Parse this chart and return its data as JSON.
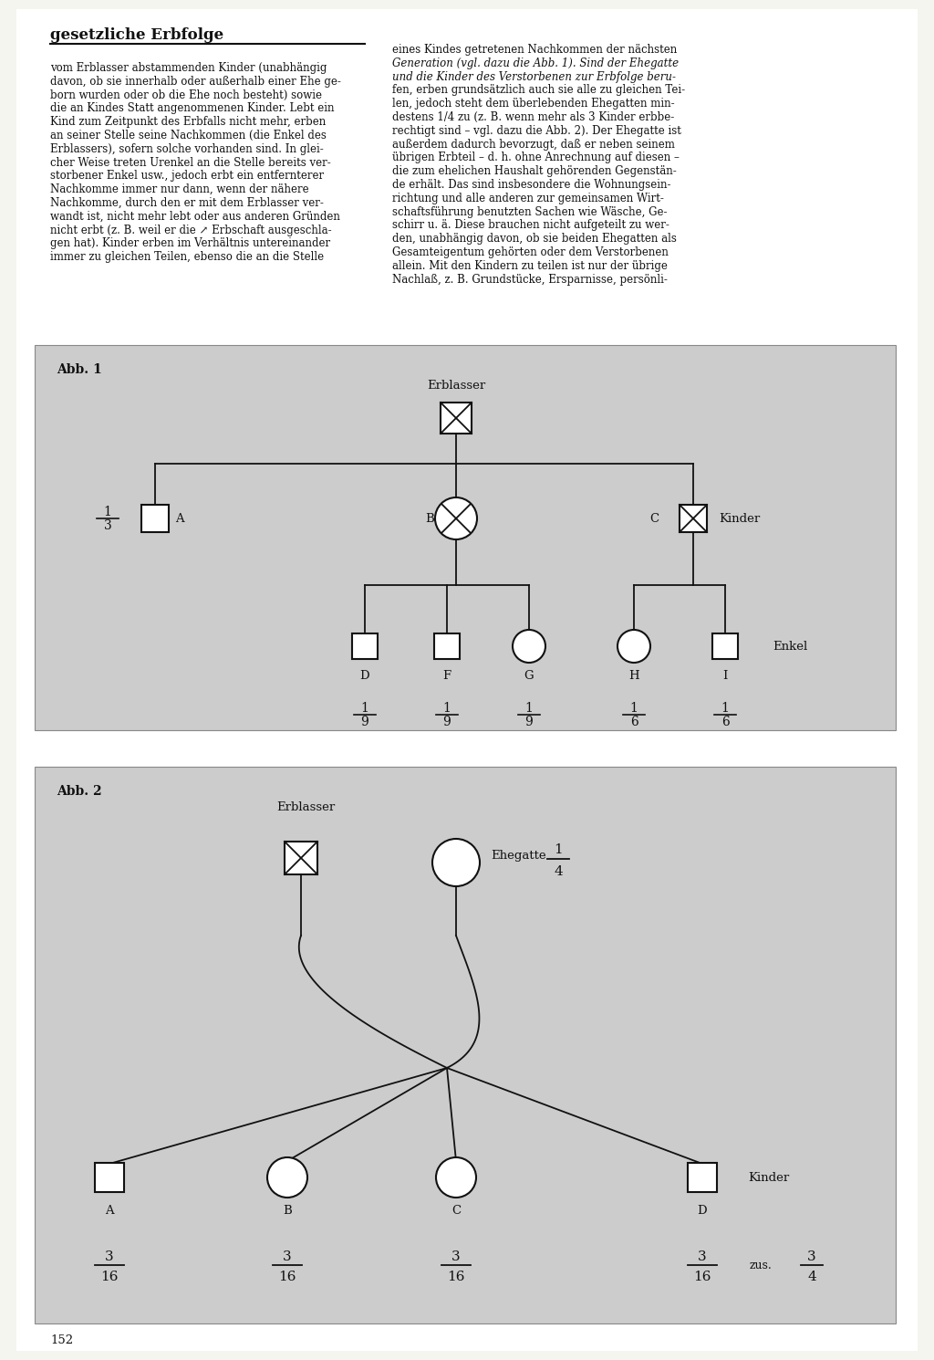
{
  "page_num": "152",
  "title": "gesetzliche Erbfolge",
  "bg_color": "#e0e0e0",
  "page_bg": "#f5f5f0",
  "text_color": "#1a1a1a",
  "black": "#111111",
  "gray_box": "#cccccc",
  "white": "#ffffff",
  "left_col_lines": [
    "vom Erblasser abstammenden Kinder (unabhängig",
    "davon, ob sie innerhalb oder außerhalb einer Ehe ge-",
    "born wurden oder ob die Ehe noch besteht) sowie",
    "die an Kindes Statt angenommenen Kinder. Lebt ein",
    "Kind zum Zeitpunkt des Erbfalls nicht mehr, erben",
    "an seiner Stelle seine Nachkommen (die Enkel des",
    "Erblassers), sofern solche vorhanden sind. In glei-",
    "cher Weise treten Urenkel an die Stelle bereits ver-",
    "storbener Enkel usw., jedoch erbt ein entfernterer",
    "Nachkomme immer nur dann, wenn der nähere",
    "Nachkomme, durch den er mit dem Erblasser ver-",
    "wandt ist, nicht mehr lebt oder aus anderen Gründen",
    "nicht erbt (z. B. weil er die ↗ Erbschaft ausgeschla-",
    "gen hat). Kinder erben im Verhältnis untereinander",
    "immer zu gleichen Teilen, ebenso die an die Stelle"
  ],
  "right_col_lines": [
    "eines Kindes getretenen Nachkommen der nächsten",
    "Generation (vgl. dazu die Abb. 1). Sind der Ehegatte",
    "und die Kinder des Verstorbenen zur Erbfolge beru-",
    "fen, erben grundsätzlich auch sie alle zu gleichen Tei-",
    "len, jedoch steht dem überlebenden Ehegatten min-",
    "destens 1/4 zu (z. B. wenn mehr als 3 Kinder erbbe-",
    "rechtigt sind – vgl. dazu die Abb. 2). Der Ehegatte ist",
    "außerdem dadurch bevorzugt, daß er neben seinem",
    "übrigen Erbteil – d. h. ohne Anrechnung auf diesen –",
    "die zum ehelichen Haushalt gehörenden Gegenstän-",
    "de erhält. Das sind insbesondere die Wohnungsein-",
    "richtung und alle anderen zur gemeinsamen Wirt-",
    "schaftsführung benutzten Sachen wie Wäsche, Ge-",
    "schirr u. ä. Diese brauchen nicht aufgeteilt zu wer-",
    "den, unabhängig davon, ob sie beiden Ehegatten als",
    "Gesamteigentum gehörten oder dem Verstorbenen",
    "allein. Mit den Kindern zu teilen ist nur der übrige",
    "Nachlaß, z. B. Grundstücke, Ersparnisse, persönli-"
  ]
}
